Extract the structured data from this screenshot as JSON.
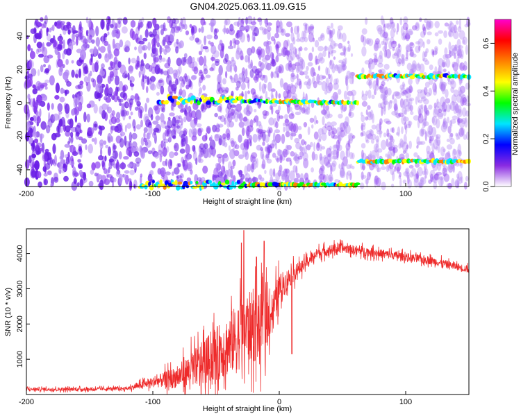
{
  "title": "GN04.2025.063.11.09.G15",
  "chart_data": [
    {
      "type": "heatmap",
      "xlabel": "Height of straight line (km)",
      "ylabel": "Frequency (Hz)",
      "xlim": [
        -200,
        150
      ],
      "ylim": [
        -50,
        50
      ],
      "xticks": [
        -200,
        -100,
        0,
        100
      ],
      "yticks": [
        -40,
        -20,
        0,
        20,
        40
      ],
      "colorbar": {
        "label": "Normalized spectral amplitude",
        "range": [
          0.0,
          0.7
        ],
        "ticks": [
          "0.0",
          "0.2",
          "0.4",
          "0.6"
        ],
        "colors": [
          "#ffffff",
          "#8a2be2",
          "#0000ff",
          "#00e5ff",
          "#00ff00",
          "#ffff00",
          "#ff8000",
          "#ff0000",
          "#ff00cc"
        ]
      },
      "dominant_lines": [
        {
          "x_range": [
            -95,
            62
          ],
          "freq_start": 2,
          "freq_end": 0
        },
        {
          "x_range": [
            62,
            150
          ],
          "freq": 16
        },
        {
          "x_range": [
            62,
            150
          ],
          "freq": -35
        },
        {
          "x_range": [
            -110,
            62
          ],
          "freq": -49
        }
      ],
      "vertical_gap_at": 62
    },
    {
      "type": "line",
      "xlabel": "Height of straight line (km)",
      "ylabel": "SNR (10 * v/v)",
      "xlim": [
        -200,
        150
      ],
      "ylim": [
        0,
        4700
      ],
      "xticks": [
        -200,
        -100,
        0,
        100
      ],
      "yticks": [
        1000,
        2000,
        3000,
        4000
      ],
      "color": "#ee2a2a",
      "profile": {
        "x": [
          -200,
          -150,
          -120,
          -100,
          -80,
          -60,
          -40,
          -25,
          -15,
          -5,
          0,
          10,
          20,
          30,
          40,
          50,
          60,
          80,
          100,
          120,
          150
        ],
        "y": [
          150,
          150,
          170,
          350,
          500,
          900,
          1400,
          1900,
          1900,
          2400,
          3000,
          3400,
          3700,
          4000,
          4100,
          4150,
          4100,
          4000,
          3900,
          3800,
          3550
        ]
      },
      "noise_amplitude": {
        "x": [
          -200,
          -120,
          -100,
          -80,
          -60,
          -40,
          -25,
          -15,
          -5,
          5,
          20,
          60,
          150
        ],
        "y": [
          60,
          60,
          180,
          400,
          800,
          1100,
          1300,
          1200,
          700,
          400,
          200,
          160,
          130
        ]
      },
      "peaks": [
        {
          "x": -28,
          "y": 4650
        },
        {
          "x": -12,
          "y": 4350
        },
        {
          "x": -30,
          "y": 4300
        },
        {
          "x": -18,
          "y": 3900
        },
        {
          "x": 10,
          "y": 1150
        }
      ]
    }
  ]
}
